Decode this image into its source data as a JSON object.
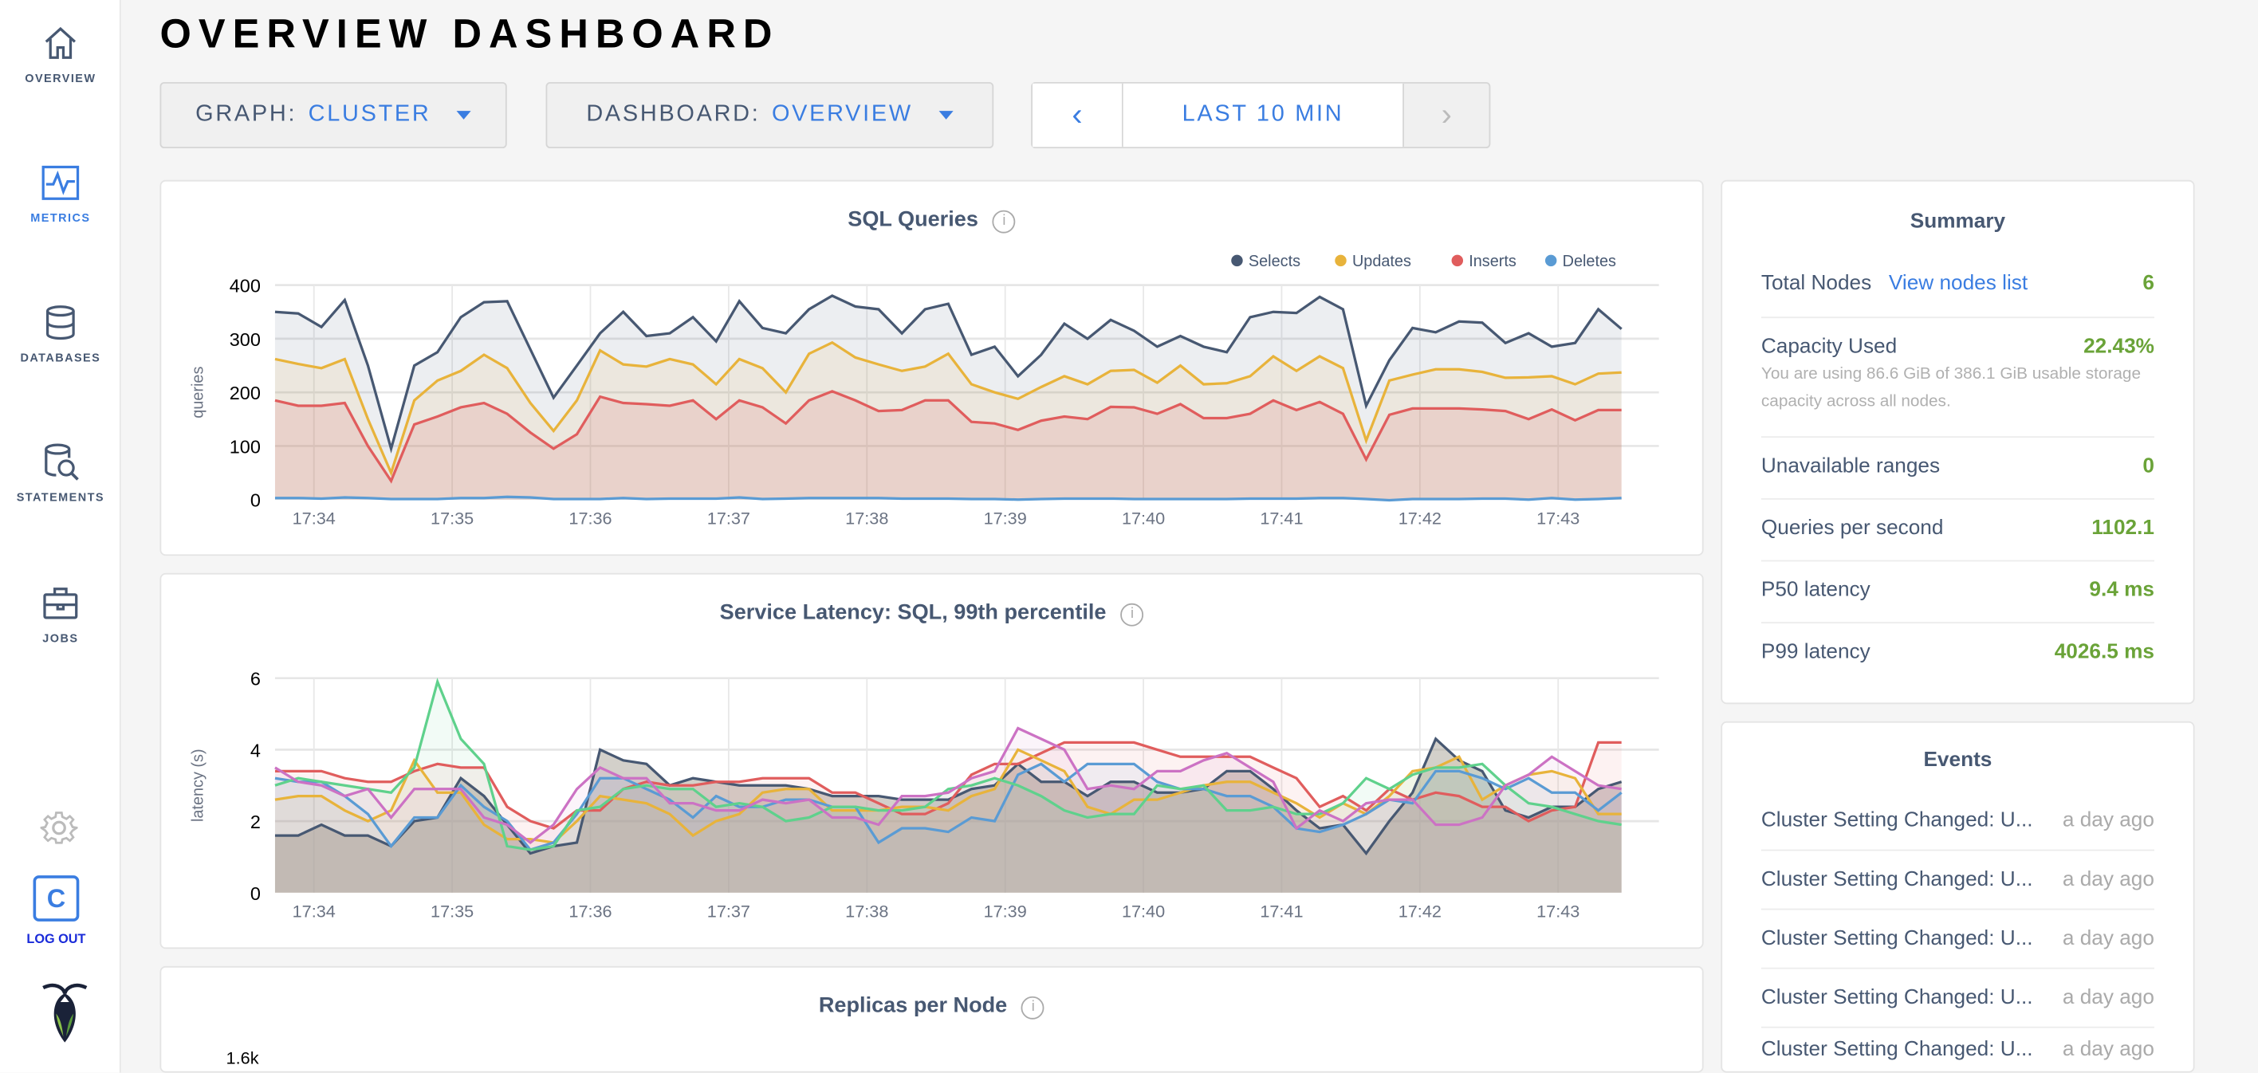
{
  "sidebar": {
    "items": [
      {
        "label": "OVERVIEW",
        "icon": "home-icon"
      },
      {
        "label": "METRICS",
        "icon": "metrics-icon",
        "active": true
      },
      {
        "label": "DATABASES",
        "icon": "database-icon"
      },
      {
        "label": "STATEMENTS",
        "icon": "statements-icon"
      },
      {
        "label": "JOBS",
        "icon": "briefcase-icon"
      }
    ],
    "user_initial": "C",
    "logout": "LOG OUT"
  },
  "header": {
    "title": "OVERVIEW DASHBOARD",
    "graph_label": "GRAPH:",
    "graph_value": "CLUSTER",
    "dashboard_label": "DASHBOARD:",
    "dashboard_value": "OVERVIEW",
    "time_range": "LAST 10 MIN",
    "prev": "‹",
    "next": "›"
  },
  "colors": {
    "accent": "#3a7de1",
    "value_green": "#6aa338"
  },
  "summary": {
    "title": "Summary",
    "total_nodes_label": "Total Nodes",
    "view_nodes": "View nodes list",
    "total_nodes": "6",
    "capacity_label": "Capacity Used",
    "capacity": "22.43%",
    "capacity_note": "You are using 86.6 GiB of 386.1 GiB usable storage capacity across all nodes.",
    "unavailable_label": "Unavailable ranges",
    "unavailable": "0",
    "qps_label": "Queries per second",
    "qps": "1102.1",
    "p50_label": "P50 latency",
    "p50": "9.4 ms",
    "p99_label": "P99 latency",
    "p99": "4026.5 ms"
  },
  "events": {
    "title": "Events",
    "items": [
      {
        "text": "Cluster Setting Changed: U...",
        "time": "a day ago"
      },
      {
        "text": "Cluster Setting Changed: U...",
        "time": "a day ago"
      },
      {
        "text": "Cluster Setting Changed: U...",
        "time": "a day ago"
      },
      {
        "text": "Cluster Setting Changed: U...",
        "time": "a day ago"
      },
      {
        "text": "Cluster Setting Changed: U...",
        "time": "a day ago"
      }
    ]
  },
  "info_icon": "i",
  "chart_data": [
    {
      "type": "area",
      "title": "SQL Queries",
      "ylabel": "queries",
      "ylim": [
        0,
        400
      ],
      "yticks": [
        "0",
        "100",
        "200",
        "300",
        "400"
      ],
      "xticks": [
        "17:34",
        "17:35",
        "17:36",
        "17:37",
        "17:38",
        "17:39",
        "17:40",
        "17:41",
        "17:42",
        "17:43"
      ],
      "grid": true,
      "legend": "top-right",
      "series": [
        {
          "name": "Selects",
          "color": "#475872",
          "values": [
            350,
            347,
            322,
            372,
            250,
            95,
            250,
            275,
            340,
            368,
            370,
            280,
            190,
            250,
            310,
            350,
            305,
            310,
            340,
            295,
            370,
            320,
            310,
            355,
            380,
            360,
            355,
            310,
            355,
            365,
            270,
            285,
            230,
            270,
            328,
            300,
            335,
            315,
            285,
            305,
            285,
            275,
            340,
            350,
            348,
            378,
            355,
            175,
            260,
            320,
            312,
            332,
            330,
            292,
            310,
            285,
            292,
            355,
            318
          ]
        },
        {
          "name": "Updates",
          "color": "#e8b33b",
          "values": [
            262,
            253,
            245,
            262,
            150,
            50,
            185,
            222,
            240,
            270,
            245,
            180,
            128,
            185,
            278,
            252,
            248,
            262,
            252,
            215,
            262,
            245,
            200,
            272,
            293,
            265,
            252,
            240,
            248,
            272,
            215,
            200,
            188,
            210,
            230,
            215,
            240,
            242,
            218,
            250,
            215,
            217,
            230,
            267,
            240,
            267,
            245,
            110,
            222,
            233,
            243,
            243,
            238,
            227,
            228,
            230,
            215,
            235,
            237
          ]
        },
        {
          "name": "Inserts",
          "color": "#e05d5d",
          "values": [
            185,
            175,
            175,
            180,
            100,
            35,
            140,
            155,
            172,
            180,
            160,
            125,
            95,
            122,
            192,
            180,
            178,
            175,
            185,
            150,
            185,
            172,
            142,
            185,
            202,
            185,
            165,
            167,
            185,
            185,
            145,
            142,
            130,
            147,
            155,
            150,
            173,
            172,
            160,
            178,
            152,
            152,
            160,
            185,
            167,
            182,
            160,
            75,
            158,
            170,
            170,
            170,
            168,
            165,
            150,
            168,
            148,
            167,
            167
          ]
        },
        {
          "name": "Deletes",
          "color": "#5a9bd4",
          "values": [
            3,
            3,
            2,
            4,
            3,
            1,
            1,
            1,
            3,
            3,
            5,
            4,
            1,
            1,
            1,
            3,
            1,
            2,
            2,
            2,
            4,
            1,
            2,
            3,
            3,
            3,
            3,
            2,
            2,
            2,
            1,
            1,
            0,
            1,
            2,
            2,
            2,
            1,
            1,
            1,
            1,
            1,
            2,
            2,
            2,
            3,
            3,
            1,
            -1,
            1,
            1,
            1,
            2,
            2,
            0,
            3,
            0,
            1,
            3
          ]
        }
      ]
    },
    {
      "type": "area",
      "title": "Service Latency: SQL, 99th percentile",
      "ylabel": "latency (s)",
      "ylim": [
        0,
        6
      ],
      "yticks": [
        "0",
        "2",
        "4",
        "6"
      ],
      "xticks": [
        "17:34",
        "17:35",
        "17:36",
        "17:37",
        "17:38",
        "17:39",
        "17:40",
        "17:41",
        "17:42",
        "17:43"
      ],
      "grid": true,
      "series": [
        {
          "color": "#475872",
          "values": [
            1.6,
            1.6,
            1.9,
            1.6,
            1.6,
            1.3,
            2.0,
            2.1,
            3.2,
            2.7,
            1.9,
            1.1,
            1.3,
            1.4,
            4.0,
            3.7,
            3.6,
            3.0,
            3.2,
            3.1,
            3.0,
            3.0,
            3.0,
            2.9,
            2.7,
            2.7,
            2.7,
            2.6,
            2.6,
            2.6,
            2.9,
            3.0,
            3.6,
            3.1,
            3.1,
            2.7,
            3.1,
            3.1,
            2.8,
            2.8,
            2.9,
            3.4,
            3.4,
            2.9,
            2.3,
            1.8,
            1.9,
            1.1,
            2.0,
            2.8,
            4.3,
            3.7,
            3.4,
            2.3,
            2.1,
            2.4,
            2.4,
            2.9,
            3.1
          ]
        },
        {
          "color": "#e05d5d",
          "values": [
            3.4,
            3.4,
            3.4,
            3.2,
            3.1,
            3.1,
            3.4,
            3.6,
            3.5,
            3.5,
            2.4,
            2.0,
            1.8,
            2.3,
            2.3,
            2.9,
            3.1,
            3.0,
            3.0,
            3.1,
            3.1,
            3.2,
            3.2,
            3.2,
            2.8,
            2.8,
            2.5,
            2.2,
            2.2,
            2.5,
            3.3,
            3.6,
            3.6,
            3.9,
            4.2,
            4.2,
            4.2,
            4.2,
            4.0,
            3.8,
            3.8,
            3.8,
            3.8,
            3.5,
            3.2,
            2.4,
            2.7,
            2.3,
            2.9,
            2.6,
            2.8,
            2.7,
            2.4,
            2.4,
            2.0,
            2.3,
            2.4,
            4.2,
            4.2
          ]
        },
        {
          "color": "#e8b33b",
          "values": [
            2.6,
            2.7,
            2.7,
            2.3,
            2.0,
            2.3,
            3.7,
            2.8,
            2.8,
            1.9,
            1.5,
            1.5,
            1.4,
            2.0,
            2.7,
            2.6,
            2.5,
            2.2,
            1.6,
            2.0,
            2.2,
            2.8,
            2.9,
            2.9,
            2.3,
            2.3,
            2.3,
            2.4,
            2.4,
            2.3,
            2.7,
            2.9,
            4.0,
            3.7,
            3.4,
            2.4,
            2.2,
            2.6,
            2.6,
            2.8,
            3.0,
            3.1,
            3.1,
            2.8,
            2.5,
            2.1,
            2.5,
            2.2,
            2.7,
            3.4,
            3.5,
            3.8,
            2.6,
            3.0,
            3.3,
            3.4,
            3.2,
            2.2,
            2.2
          ]
        },
        {
          "color": "#5a9bd4",
          "values": [
            3.2,
            3.1,
            3.1,
            2.7,
            2.2,
            1.3,
            2.1,
            2.1,
            3.0,
            2.4,
            2.0,
            1.2,
            1.4,
            2.2,
            3.2,
            3.2,
            2.9,
            2.6,
            2.1,
            2.7,
            2.4,
            2.4,
            2.6,
            2.6,
            2.4,
            2.4,
            1.4,
            1.8,
            1.8,
            1.7,
            2.1,
            2.0,
            3.3,
            3.6,
            3.1,
            3.6,
            3.6,
            3.6,
            3.1,
            2.9,
            2.9,
            2.7,
            2.7,
            2.4,
            1.8,
            1.7,
            1.9,
            2.2,
            2.6,
            2.5,
            3.4,
            3.4,
            3.2,
            2.9,
            3.2,
            2.8,
            2.8,
            2.3,
            2.8
          ]
        },
        {
          "color": "#5fd18c",
          "values": [
            3.0,
            3.2,
            3.1,
            3.0,
            2.9,
            2.8,
            3.5,
            5.9,
            4.3,
            3.6,
            1.3,
            1.2,
            1.3,
            2.3,
            2.4,
            2.9,
            3.0,
            2.9,
            2.9,
            2.4,
            2.5,
            2.4,
            2.0,
            2.1,
            2.4,
            2.4,
            2.3,
            2.3,
            2.4,
            2.9,
            3.0,
            3.2,
            3.0,
            2.7,
            2.3,
            2.1,
            2.2,
            2.2,
            3.0,
            2.9,
            3.0,
            2.3,
            2.3,
            2.4,
            2.2,
            2.2,
            2.5,
            3.2,
            2.9,
            3.3,
            3.5,
            3.5,
            3.6,
            3.0,
            2.5,
            2.4,
            2.2,
            2.0,
            1.9
          ]
        },
        {
          "color": "#cc72c4",
          "values": [
            3.5,
            3.1,
            3.0,
            2.7,
            2.9,
            2.1,
            2.9,
            2.9,
            2.9,
            2.1,
            1.9,
            1.4,
            1.9,
            2.9,
            3.5,
            3.2,
            3.2,
            2.5,
            2.5,
            2.3,
            2.3,
            2.6,
            2.5,
            2.6,
            2.1,
            2.1,
            1.9,
            2.7,
            2.7,
            2.8,
            3.2,
            3.4,
            4.6,
            4.3,
            4.0,
            2.9,
            3.0,
            2.9,
            3.4,
            3.4,
            3.7,
            3.9,
            3.5,
            3.1,
            1.8,
            2.3,
            2.0,
            2.5,
            2.6,
            2.6,
            1.9,
            1.9,
            2.1,
            3.0,
            3.3,
            3.8,
            3.4,
            3.0,
            2.9
          ]
        }
      ]
    },
    {
      "type": "line",
      "title": "Replicas per Node",
      "yticks": [
        "1.6k"
      ]
    }
  ]
}
